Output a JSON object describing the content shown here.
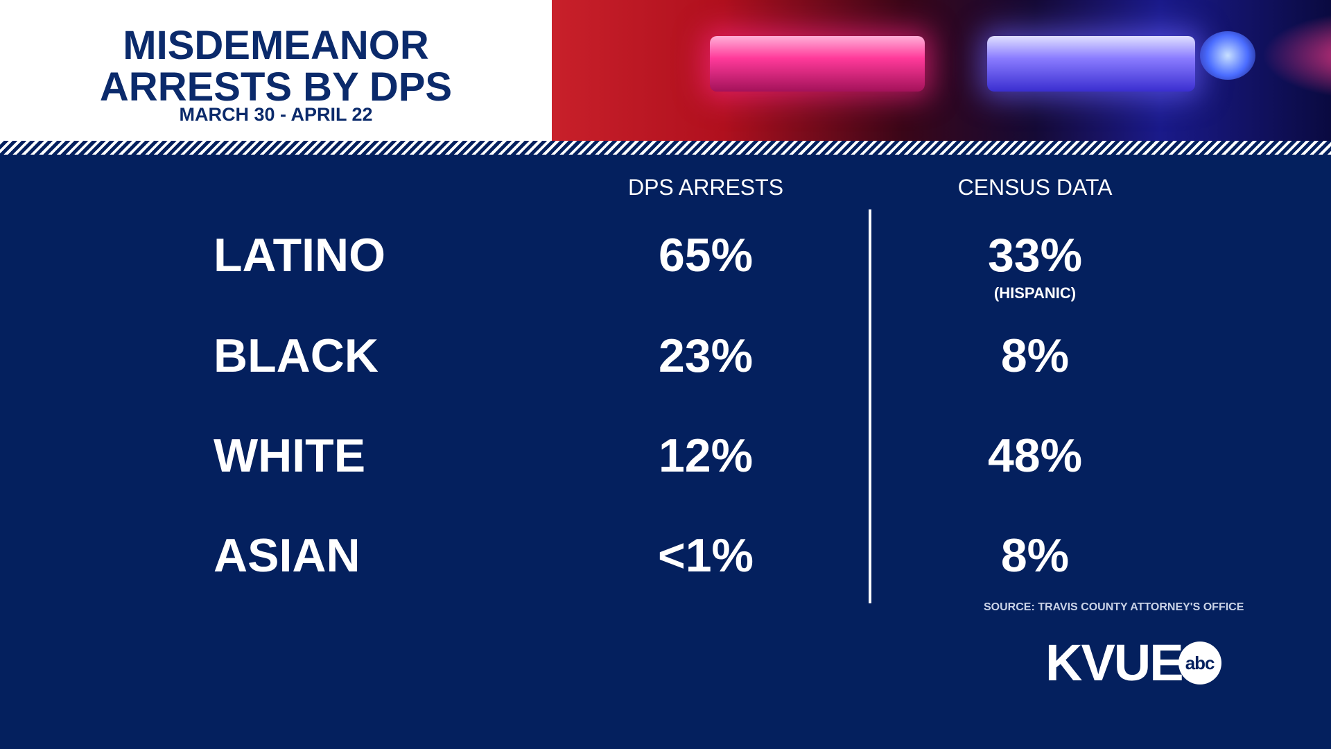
{
  "header": {
    "title_line1": "MISDEMEANOR",
    "title_line2": "ARRESTS BY DPS",
    "subtitle": "MARCH 30 - APRIL 22"
  },
  "columns": {
    "dps": "DPS ARRESTS",
    "census": "CENSUS DATA"
  },
  "chart_data": {
    "type": "table",
    "title": "MISDEMEANOR ARRESTS BY DPS",
    "subtitle": "MARCH 30 - APRIL 22",
    "columns": [
      "DPS ARRESTS",
      "CENSUS DATA"
    ],
    "rows": [
      {
        "label": "LATINO",
        "dps": "65%",
        "census": "33%",
        "census_note": "(HISPANIC)"
      },
      {
        "label": "BLACK",
        "dps": "23%",
        "census": "8%"
      },
      {
        "label": "WHITE",
        "dps": "12%",
        "census": "48%"
      },
      {
        "label": "ASIAN",
        "dps": "<1%",
        "census": "8%"
      }
    ]
  },
  "source": "SOURCE: TRAVIS COUNTY ATTORNEY'S OFFICE",
  "logo": {
    "text": "KVUE",
    "network": "abc"
  },
  "colors": {
    "background": "#04205e",
    "title": "#0b2a6b",
    "text": "#ffffff"
  }
}
